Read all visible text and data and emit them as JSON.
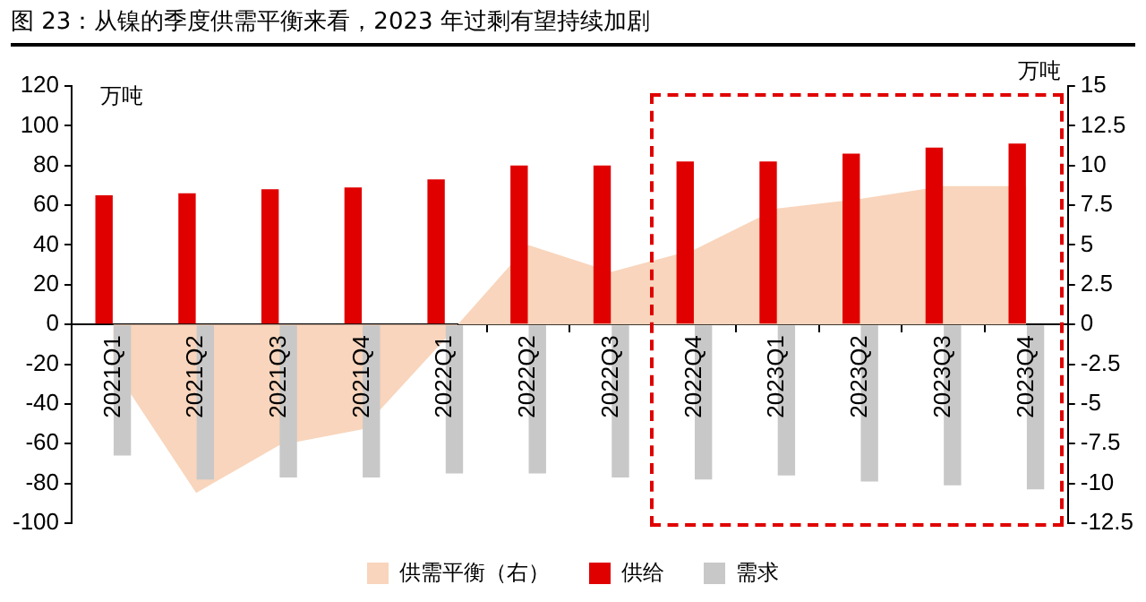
{
  "chart_data": {
    "type": "bar",
    "title": "图 23：从镍的季度供需平衡来看，2023 年过剩有望持续加剧",
    "ylabel": "万吨",
    "y2label": "万吨",
    "categories": [
      "2021Q1",
      "2021Q2",
      "2021Q3",
      "2021Q4",
      "2022Q1",
      "2022Q2",
      "2022Q3",
      "2022Q4",
      "2023Q1",
      "2023Q2",
      "2023Q3",
      "2023Q4"
    ],
    "series": [
      {
        "name": "供需平衡（右）",
        "type": "area",
        "axis": "y2",
        "color": "#f8d5bc",
        "values": [
          -2.7,
          -10.6,
          -7.6,
          -6.6,
          -0.9,
          5.0,
          3.3,
          4.7,
          7.3,
          7.9,
          8.7,
          8.7
        ]
      },
      {
        "name": "供给",
        "color": "#e00000",
        "values": [
          65,
          66,
          68,
          69,
          73,
          80,
          80,
          82,
          82,
          86,
          89,
          91
        ]
      },
      {
        "name": "需求",
        "color": "#c8c8c8",
        "values": [
          -66,
          -78,
          -77,
          -77,
          -75,
          -75,
          -77,
          -78,
          -76,
          -79,
          -81,
          -83
        ]
      }
    ],
    "ylim": [
      -100,
      120
    ],
    "yticks": [
      -100,
      -80,
      -60,
      -40,
      -20,
      0,
      20,
      40,
      60,
      80,
      100,
      120
    ],
    "y2lim": [
      -12.5,
      15
    ],
    "y2ticks": [
      -12.5,
      -10,
      -7.5,
      -5,
      -2.5,
      0,
      2.5,
      5,
      7.5,
      10,
      12.5,
      15
    ],
    "grid": false,
    "legend": "bottom"
  }
}
